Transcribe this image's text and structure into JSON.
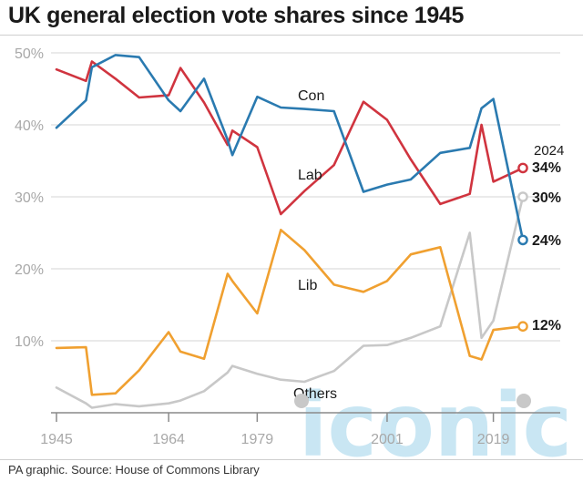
{
  "title": "UK general election vote shares since 1945",
  "source": "PA graphic. Source: House of Commons Library",
  "watermark": "iconic",
  "chart_data": {
    "type": "line",
    "title": "UK general election vote shares since 1945",
    "xlabel": "",
    "ylabel": "",
    "x": [
      1945,
      1950,
      1951,
      1955,
      1959,
      1964,
      1966,
      1970,
      1974,
      1974.8,
      1979,
      1983,
      1987,
      1992,
      1997,
      2001,
      2005,
      2010,
      2015,
      2017,
      2019,
      2024
    ],
    "x_ticks": [
      1945,
      1964,
      1979,
      2001,
      2019
    ],
    "x_tick_labels": [
      "1945",
      "1964",
      "1979",
      "2001",
      "2019"
    ],
    "xlim": [
      1945,
      2024
    ],
    "ylim": [
      0,
      50
    ],
    "y_ticks": [
      10,
      20,
      30,
      40,
      50
    ],
    "y_tick_labels": [
      "10%",
      "20%",
      "30%",
      "40%",
      "50%"
    ],
    "grid": true,
    "series": [
      {
        "name": "Con",
        "color": "#2a7ab0",
        "values": [
          39.6,
          43.4,
          48.0,
          49.7,
          49.4,
          43.4,
          41.9,
          46.4,
          37.9,
          35.8,
          43.9,
          42.4,
          42.2,
          41.9,
          30.7,
          31.7,
          32.4,
          36.1,
          36.8,
          42.3,
          43.6,
          24
        ]
      },
      {
        "name": "Lab",
        "color": "#d0343f",
        "values": [
          47.7,
          46.1,
          48.8,
          46.4,
          43.8,
          44.1,
          47.9,
          43.1,
          37.2,
          39.2,
          36.9,
          27.6,
          30.8,
          34.4,
          43.2,
          40.7,
          35.2,
          29.0,
          30.4,
          40.0,
          32.1,
          34
        ]
      },
      {
        "name": "Lib",
        "color": "#f0a030",
        "values": [
          9.0,
          9.1,
          2.5,
          2.7,
          5.9,
          11.2,
          8.5,
          7.5,
          19.3,
          18.3,
          13.8,
          25.4,
          22.6,
          17.8,
          16.8,
          18.3,
          22.0,
          23.0,
          7.9,
          7.4,
          11.5,
          12
        ]
      },
      {
        "name": "Others",
        "color": "#c8c8c8",
        "values": [
          3.5,
          1.3,
          0.7,
          1.2,
          0.9,
          1.3,
          1.7,
          3.0,
          5.6,
          6.5,
          5.4,
          4.6,
          4.3,
          5.8,
          9.3,
          9.4,
          10.4,
          12.0,
          25.0,
          10.4,
          12.8,
          30
        ]
      }
    ],
    "end_year_label": "2024",
    "end_labels": [
      "34%",
      "30%",
      "24%",
      "12%"
    ]
  }
}
